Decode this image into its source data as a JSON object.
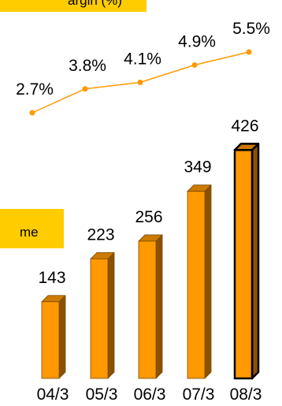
{
  "chart_data": [
    {
      "type": "line",
      "legend": "argin (%)",
      "x": [
        "04/3",
        "05/3",
        "06/3",
        "07/3",
        "08/3"
      ],
      "values": [
        2.7,
        3.8,
        4.1,
        4.9,
        5.5
      ],
      "labels": [
        "2.7%",
        "3.8%",
        "4.1%",
        "4.9%",
        "5.5%"
      ],
      "color": "#ff9900"
    },
    {
      "type": "bar",
      "legend": "me",
      "categories": [
        "04/3",
        "05/3",
        "06/3",
        "07/3",
        "08/3"
      ],
      "values": [
        143,
        223,
        256,
        349,
        426
      ],
      "labels": [
        "143",
        "223",
        "256",
        "349",
        "426"
      ],
      "bar_color": "#ff9900",
      "bar_top_color": "#cc7a00",
      "bar_side_color": "#8a5200",
      "highlight_last": true
    }
  ]
}
